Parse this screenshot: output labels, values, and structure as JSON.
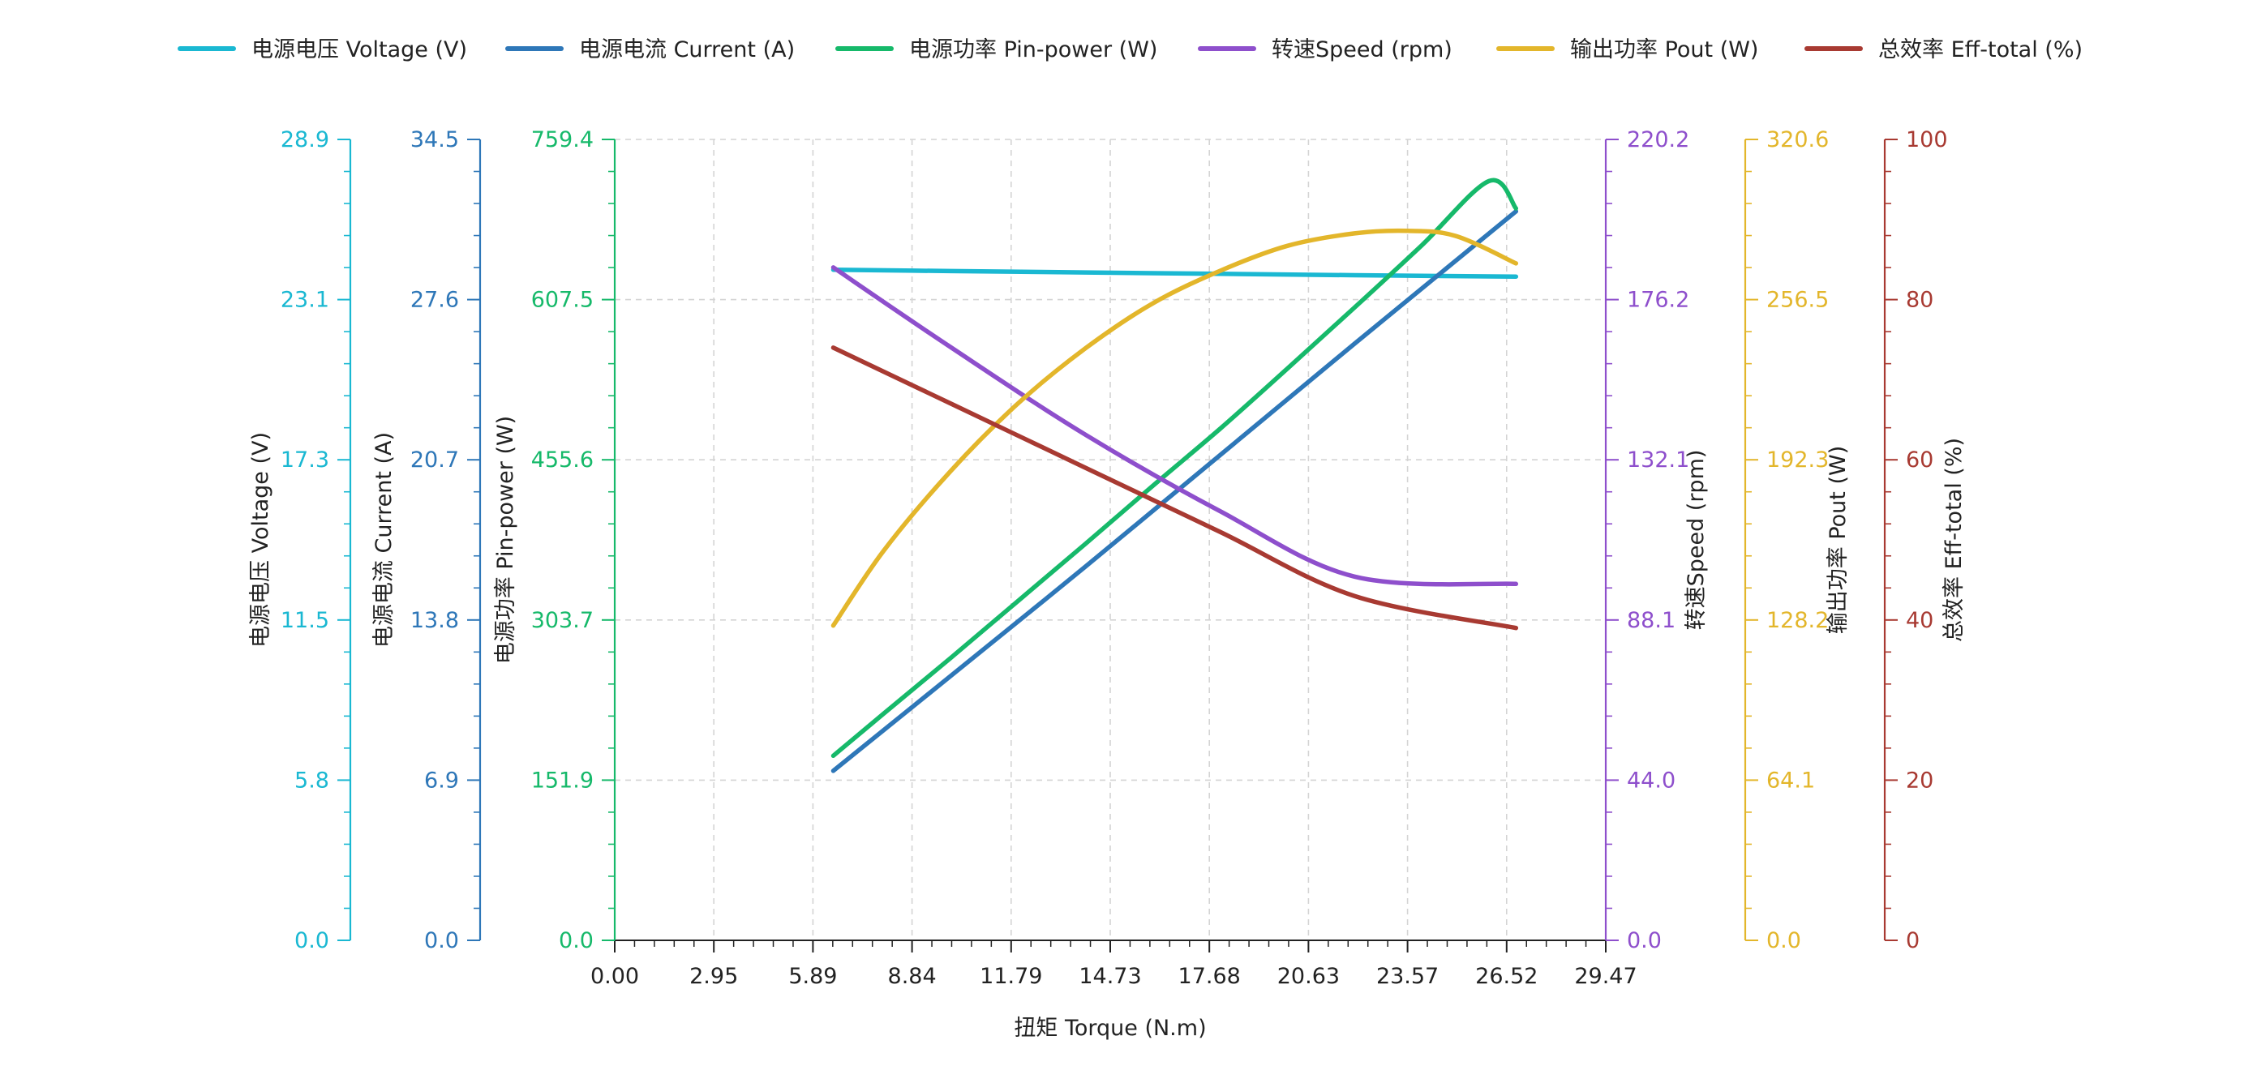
{
  "chart_data": {
    "type": "line",
    "xlabel": "扭矩 Torque (N.m)",
    "x_ticks": [
      "0.00",
      "2.95",
      "5.89",
      "8.84",
      "11.79",
      "14.73",
      "17.68",
      "20.63",
      "23.57",
      "26.52",
      "29.47"
    ],
    "xlim": [
      0,
      29.47
    ],
    "grid": true,
    "legend_position": "top",
    "axes": [
      {
        "id": "voltage",
        "side": "left",
        "label": "电源电压 Voltage (V)",
        "color": "#1ab8d2",
        "ylim": [
          0,
          28.9
        ],
        "ticks": [
          "0.0",
          "5.8",
          "11.5",
          "17.3",
          "23.1",
          "28.9"
        ]
      },
      {
        "id": "current",
        "side": "left",
        "label": "电源电流 Current (A)",
        "color": "#2e77b8",
        "ylim": [
          0,
          34.5
        ],
        "ticks": [
          "0.0",
          "6.9",
          "13.8",
          "20.7",
          "27.6",
          "34.5"
        ]
      },
      {
        "id": "pin",
        "side": "left",
        "label": "电源功率 Pin-power (W)",
        "color": "#16b96a",
        "ylim": [
          0,
          759.4
        ],
        "ticks": [
          "0.0",
          "151.9",
          "303.7",
          "455.6",
          "607.5",
          "759.4"
        ]
      },
      {
        "id": "speed",
        "side": "right",
        "label": "转速Speed (rpm)",
        "color": "#8e4fcc",
        "ylim": [
          0,
          220.2
        ],
        "ticks": [
          "0.0",
          "44.0",
          "88.1",
          "132.1",
          "176.2",
          "220.2"
        ]
      },
      {
        "id": "pout",
        "side": "right",
        "label": "输出功率 Pout (W)",
        "color": "#e3b62b",
        "ylim": [
          0,
          320.6
        ],
        "ticks": [
          "0.0",
          "64.1",
          "128.2",
          "192.3",
          "256.5",
          "320.6"
        ]
      },
      {
        "id": "eff",
        "side": "right",
        "label": "总效率 Eff-total (%)",
        "color": "#a83a32",
        "ylim": [
          0,
          100
        ],
        "ticks": [
          "0",
          "20",
          "40",
          "60",
          "80",
          "100"
        ]
      }
    ],
    "series": [
      {
        "name": "电源电压 Voltage (V)",
        "axis": "voltage",
        "color": "#1ab8d2",
        "x": [
          6.5,
          10,
          14,
          18,
          22,
          26.8
        ],
        "y": [
          24.2,
          24.15,
          24.1,
          24.05,
          24.0,
          23.95
        ]
      },
      {
        "name": "电源电流 Current (A)",
        "axis": "current",
        "color": "#2e77b8",
        "x": [
          6.5,
          10,
          14,
          18,
          22,
          26.8
        ],
        "y": [
          7.3,
          11.4,
          16.1,
          20.9,
          25.7,
          31.4
        ]
      },
      {
        "name": "电源功率 Pin-power (W)",
        "axis": "pin",
        "color": "#16b96a",
        "x": [
          6.5,
          8,
          10,
          12,
          14,
          16,
          18,
          20,
          22,
          24,
          26,
          26.8
        ],
        "y": [
          175,
          215,
          268,
          322,
          376,
          431,
          485,
          542,
          600,
          659,
          720,
          694
        ]
      },
      {
        "name": "转速Speed (rpm)",
        "axis": "speed",
        "color": "#8e4fcc",
        "x": [
          6.5,
          10,
          14,
          18,
          22,
          26.8
        ],
        "y": [
          185,
          163,
          139,
          118,
          100,
          98
        ]
      },
      {
        "name": "输出功率 Pout (W)",
        "axis": "pout",
        "color": "#e3b62b",
        "x": [
          6.5,
          8,
          10,
          12,
          14,
          16,
          18,
          20,
          22,
          23.57,
          25,
          26.8
        ],
        "y": [
          126,
          156,
          188,
          215,
          237,
          255,
          268,
          278,
          283,
          284,
          282,
          271
        ]
      },
      {
        "name": "总效率 Eff-total (%)",
        "axis": "eff",
        "color": "#a83a32",
        "x": [
          6.5,
          10,
          14,
          18,
          22,
          26.8
        ],
        "y": [
          74,
          67,
          59,
          51,
          43,
          39
        ]
      }
    ]
  }
}
